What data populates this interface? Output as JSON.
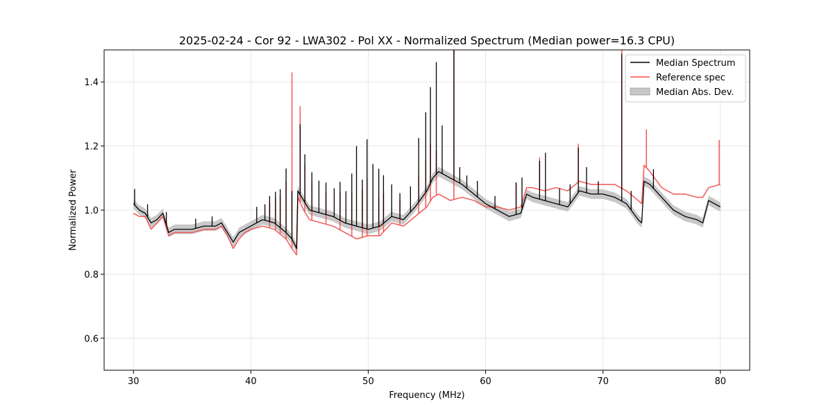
{
  "chart_data": {
    "type": "line",
    "title": "2025-02-24 - Cor 92 - LWA302 - Pol XX - Normalized Spectrum (Median power=16.3 CPU)",
    "xlabel": "Frequency (MHz)",
    "ylabel": "Normalized Power",
    "xlim": [
      27.5,
      82.5
    ],
    "ylim": [
      0.5,
      1.5
    ],
    "xticks": [
      30,
      40,
      50,
      60,
      70,
      80
    ],
    "xtick_labels": [
      "30",
      "40",
      "50",
      "60",
      "70",
      "80"
    ],
    "yticks": [
      0.6,
      0.8,
      1.0,
      1.2,
      1.4
    ],
    "ytick_labels": [
      "0.6",
      "0.8",
      "1.0",
      "1.2",
      "1.4"
    ],
    "grid": true,
    "legend_position": "top-right",
    "legend": [
      {
        "label": "Median Spectrum",
        "kind": "line",
        "color": "#000000"
      },
      {
        "label": "Reference spec",
        "kind": "line",
        "color": "#f0504e"
      },
      {
        "label": "Median Abs. Dev.",
        "kind": "band",
        "color": "#c8c8c8"
      }
    ],
    "mad_half_width": 0.015,
    "series": [
      {
        "name": "Median Spectrum",
        "color": "#000000",
        "x": [
          30.0,
          30.5,
          31.0,
          31.5,
          32.0,
          32.5,
          33.0,
          33.5,
          34.0,
          35.0,
          36.0,
          37.0,
          37.5,
          38.0,
          38.5,
          39.0,
          39.5,
          40.0,
          41.0,
          42.0,
          43.0,
          43.5,
          43.9,
          44.0,
          44.5,
          45.0,
          46.0,
          47.0,
          48.0,
          49.0,
          50.0,
          51.0,
          52.0,
          53.0,
          54.0,
          55.0,
          55.5,
          56.0,
          57.0,
          58.0,
          59.0,
          60.0,
          61.0,
          62.0,
          63.0,
          63.5,
          64.0,
          65.0,
          66.0,
          67.0,
          68.0,
          69.0,
          70.0,
          71.0,
          72.0,
          73.0,
          73.3,
          73.5,
          74.0,
          75.0,
          76.0,
          77.0,
          78.0,
          78.5,
          79.0,
          80.0
        ],
        "y": [
          1.02,
          1.0,
          0.99,
          0.96,
          0.97,
          0.99,
          0.93,
          0.94,
          0.94,
          0.94,
          0.95,
          0.95,
          0.96,
          0.93,
          0.9,
          0.93,
          0.94,
          0.95,
          0.97,
          0.96,
          0.93,
          0.91,
          0.88,
          1.06,
          1.03,
          1.0,
          0.99,
          0.98,
          0.96,
          0.95,
          0.94,
          0.95,
          0.98,
          0.97,
          1.01,
          1.06,
          1.1,
          1.12,
          1.1,
          1.08,
          1.05,
          1.02,
          1.0,
          0.98,
          0.99,
          1.05,
          1.04,
          1.03,
          1.02,
          1.01,
          1.06,
          1.05,
          1.05,
          1.04,
          1.02,
          0.97,
          0.96,
          1.09,
          1.08,
          1.04,
          1.0,
          0.98,
          0.97,
          0.96,
          1.03,
          1.01
        ]
      },
      {
        "name": "Reference spec",
        "color": "#f0504e",
        "x": [
          30.0,
          30.5,
          31.0,
          31.5,
          32.0,
          32.5,
          33.0,
          33.5,
          34.0,
          35.0,
          36.0,
          37.0,
          37.5,
          38.0,
          38.5,
          39.0,
          39.5,
          40.0,
          41.0,
          42.0,
          43.0,
          43.5,
          43.9,
          44.0,
          44.5,
          45.0,
          46.0,
          47.0,
          48.0,
          49.0,
          50.0,
          51.0,
          52.0,
          53.0,
          54.0,
          55.0,
          55.5,
          56.0,
          57.0,
          58.0,
          59.0,
          60.0,
          61.0,
          62.0,
          63.0,
          63.5,
          64.0,
          65.0,
          66.0,
          67.0,
          68.0,
          69.0,
          70.0,
          71.0,
          72.0,
          73.0,
          73.3,
          73.5,
          74.0,
          75.0,
          76.0,
          77.0,
          78.0,
          78.5,
          79.0,
          80.0
        ],
        "y": [
          0.99,
          0.98,
          0.98,
          0.94,
          0.96,
          0.98,
          0.92,
          0.93,
          0.93,
          0.93,
          0.94,
          0.94,
          0.95,
          0.92,
          0.88,
          0.91,
          0.93,
          0.94,
          0.95,
          0.94,
          0.91,
          0.88,
          0.86,
          1.04,
          1.0,
          0.97,
          0.96,
          0.95,
          0.93,
          0.91,
          0.92,
          0.92,
          0.96,
          0.95,
          0.98,
          1.01,
          1.04,
          1.05,
          1.03,
          1.04,
          1.03,
          1.01,
          1.01,
          1.0,
          1.01,
          1.07,
          1.07,
          1.06,
          1.07,
          1.06,
          1.09,
          1.08,
          1.08,
          1.08,
          1.06,
          1.03,
          1.02,
          1.14,
          1.12,
          1.07,
          1.05,
          1.05,
          1.04,
          1.04,
          1.07,
          1.08
        ]
      }
    ],
    "spikes": [
      {
        "series": "Median Spectrum",
        "x": [
          30.1,
          31.2,
          32.8,
          35.3,
          36.7,
          40.5,
          41.2,
          41.6,
          42.1,
          42.5,
          43.0,
          43.5,
          44.2,
          44.6,
          45.2,
          45.8,
          46.4,
          47.1,
          47.6,
          48.1,
          48.6,
          49.0,
          49.5,
          49.9,
          50.4,
          50.9,
          51.3,
          52.0,
          52.7,
          53.6,
          54.3,
          54.9,
          55.3,
          55.8,
          56.3,
          57.3,
          57.8,
          58.4,
          59.3,
          60.8,
          62.6,
          63.1,
          64.6,
          65.1,
          66.3,
          67.2,
          67.9,
          68.6,
          69.6,
          71.6,
          72.4,
          74.3
        ],
        "h": [
          0.05,
          0.04,
          0.04,
          0.03,
          0.03,
          0.05,
          0.05,
          0.08,
          0.1,
          0.12,
          0.2,
          0.15,
          0.22,
          0.15,
          0.12,
          0.1,
          0.1,
          0.09,
          0.12,
          0.1,
          0.16,
          0.25,
          0.15,
          0.28,
          0.2,
          0.18,
          0.15,
          0.1,
          0.08,
          0.08,
          0.2,
          0.25,
          0.3,
          0.35,
          0.15,
          0.45,
          0.05,
          0.04,
          0.05,
          0.04,
          0.1,
          0.1,
          0.12,
          0.15,
          0.05,
          0.06,
          0.14,
          0.08,
          0.04,
          0.46,
          0.06,
          0.06
        ]
      },
      {
        "series": "Reference spec",
        "x": [
          41.6,
          42.1,
          42.5,
          43.0,
          43.5,
          44.2,
          44.6,
          45.2,
          46.4,
          47.6,
          48.6,
          49.5,
          49.9,
          50.9,
          51.3,
          52.7,
          54.3,
          54.9,
          55.3,
          55.8,
          57.3,
          62.6,
          64.6,
          67.9,
          71.6,
          73.7,
          79.9
        ],
        "h": [
          0.08,
          0.1,
          0.12,
          0.18,
          0.55,
          0.3,
          0.15,
          0.12,
          0.1,
          0.12,
          0.14,
          0.15,
          0.18,
          0.12,
          0.12,
          0.08,
          0.12,
          0.15,
          0.18,
          0.14,
          0.5,
          0.08,
          0.1,
          0.12,
          0.45,
          0.12,
          0.14
        ]
      }
    ]
  }
}
